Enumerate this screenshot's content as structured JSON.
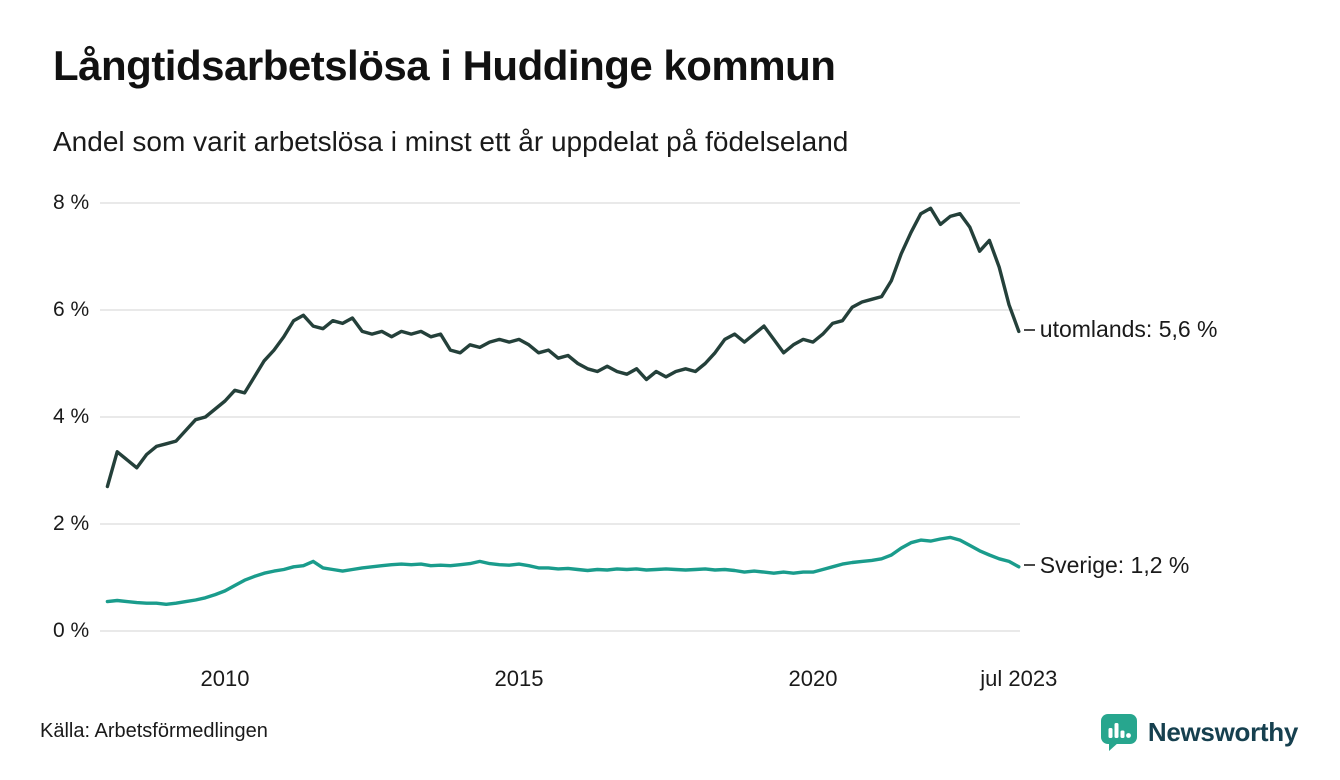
{
  "title": "Långtidsarbetslösa i Huddinge kommun",
  "subtitle": "Andel som varit arbetslösa i minst ett år uppdelat på födelseland",
  "source": "Källa: Arbetsförmedlingen",
  "brand": {
    "name": "Newsworthy",
    "icon": "newsworthy-chart-bubble-icon",
    "icon_color": "#27a68e",
    "text_color": "#16404f"
  },
  "colors": {
    "utomlands_line": "#24403a",
    "sverige_line": "#1a9c8c",
    "grid": "#dcdcdc",
    "text": "#1a1a1a"
  },
  "chart_data": {
    "type": "line",
    "title": "Långtidsarbetslösa i Huddinge kommun",
    "subtitle": "Andel som varit arbetslösa i minst ett år uppdelat på födelseland",
    "xlabel": "",
    "ylabel": "",
    "x_unit": "decimal_year",
    "x_start": 2008.0,
    "x_end": 2023.5,
    "x_step_months": 2,
    "xlim": [
      2008.0,
      2023.5
    ],
    "ylim": [
      0,
      8
    ],
    "grid": "horizontal",
    "legend_position": "line-end-labels",
    "yticks": [
      {
        "value": 0,
        "label": "0 %"
      },
      {
        "value": 2,
        "label": "2 %"
      },
      {
        "value": 4,
        "label": "4 %"
      },
      {
        "value": 6,
        "label": "6 %"
      },
      {
        "value": 8,
        "label": "8 %"
      }
    ],
    "xticks": [
      {
        "value": 2010,
        "label": "2010"
      },
      {
        "value": 2015,
        "label": "2015"
      },
      {
        "value": 2020,
        "label": "2020"
      },
      {
        "value": 2023.5,
        "label": "jul 2023"
      }
    ],
    "series": [
      {
        "name": "utomlands",
        "end_label": "utomlands: 5,6 %",
        "end_value": "5,6 %",
        "color": "#24403a",
        "values": [
          2.7,
          3.35,
          3.2,
          3.05,
          3.3,
          3.45,
          3.5,
          3.55,
          3.75,
          3.95,
          4.0,
          4.15,
          4.3,
          4.5,
          4.45,
          4.75,
          5.05,
          5.25,
          5.5,
          5.8,
          5.9,
          5.7,
          5.65,
          5.8,
          5.75,
          5.85,
          5.6,
          5.55,
          5.6,
          5.5,
          5.6,
          5.55,
          5.6,
          5.5,
          5.55,
          5.25,
          5.2,
          5.35,
          5.3,
          5.4,
          5.45,
          5.4,
          5.45,
          5.35,
          5.2,
          5.25,
          5.1,
          5.15,
          5.0,
          4.9,
          4.85,
          4.95,
          4.85,
          4.8,
          4.9,
          4.7,
          4.85,
          4.75,
          4.85,
          4.9,
          4.85,
          5.0,
          5.2,
          5.45,
          5.55,
          5.4,
          5.55,
          5.7,
          5.45,
          5.2,
          5.35,
          5.45,
          5.4,
          5.55,
          5.75,
          5.8,
          6.05,
          6.15,
          6.2,
          6.25,
          6.55,
          7.05,
          7.45,
          7.8,
          7.9,
          7.6,
          7.75,
          7.8,
          7.55,
          7.1,
          7.3,
          6.8,
          6.1,
          5.6
        ]
      },
      {
        "name": "Sverige",
        "end_label": "Sverige: 1,2 %",
        "end_value": "1,2 %",
        "color": "#1a9c8c",
        "values": [
          0.55,
          0.57,
          0.55,
          0.53,
          0.52,
          0.52,
          0.5,
          0.52,
          0.55,
          0.58,
          0.62,
          0.68,
          0.75,
          0.85,
          0.95,
          1.02,
          1.08,
          1.12,
          1.15,
          1.2,
          1.22,
          1.3,
          1.18,
          1.15,
          1.12,
          1.15,
          1.18,
          1.2,
          1.22,
          1.24,
          1.25,
          1.24,
          1.25,
          1.22,
          1.23,
          1.22,
          1.24,
          1.26,
          1.3,
          1.26,
          1.24,
          1.23,
          1.25,
          1.22,
          1.18,
          1.18,
          1.16,
          1.17,
          1.15,
          1.13,
          1.15,
          1.14,
          1.16,
          1.15,
          1.16,
          1.14,
          1.15,
          1.16,
          1.15,
          1.14,
          1.15,
          1.16,
          1.14,
          1.15,
          1.13,
          1.1,
          1.12,
          1.1,
          1.08,
          1.1,
          1.08,
          1.1,
          1.1,
          1.15,
          1.2,
          1.25,
          1.28,
          1.3,
          1.32,
          1.35,
          1.42,
          1.55,
          1.65,
          1.7,
          1.68,
          1.72,
          1.75,
          1.7,
          1.6,
          1.5,
          1.42,
          1.35,
          1.3,
          1.2
        ]
      }
    ]
  }
}
